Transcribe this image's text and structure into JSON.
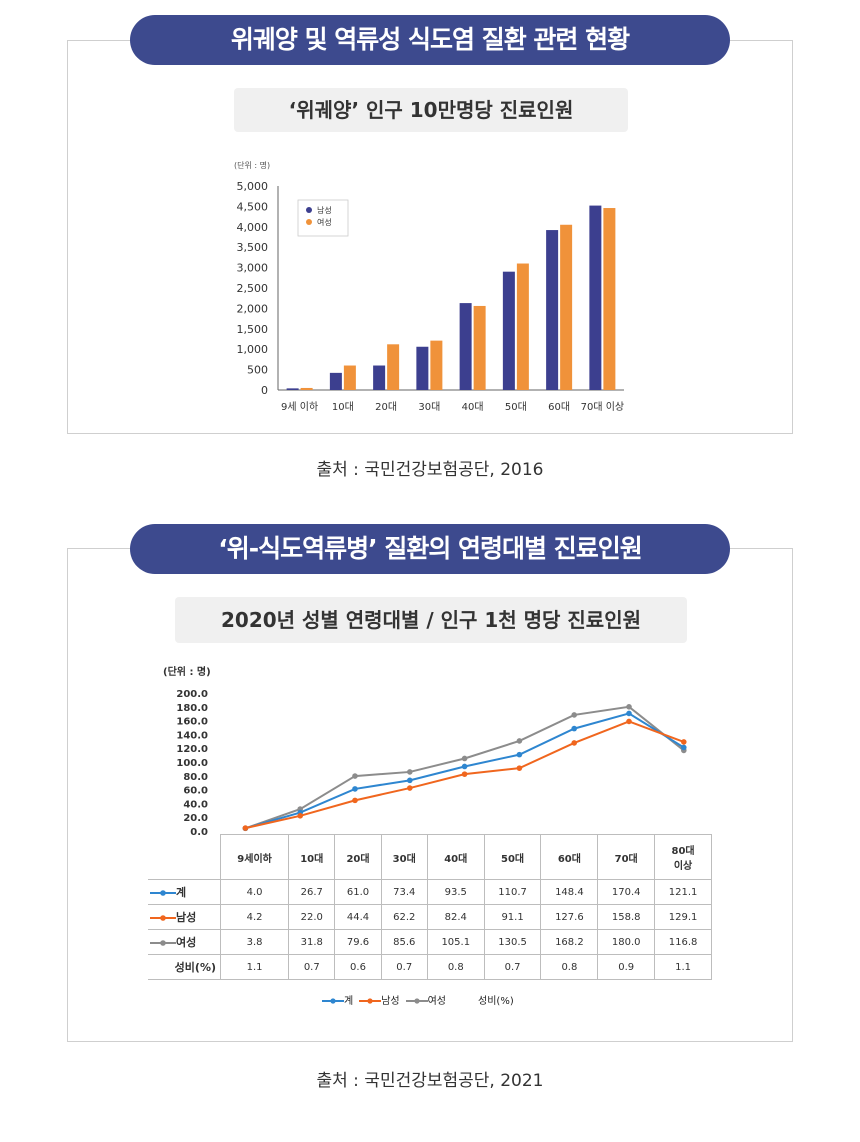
{
  "section1": {
    "title": "위궤양 및 역류성 식도염 질환 관련 현황",
    "subtitle": "‘위궤양’ 인구 10만명당 진료인원",
    "source": "출처 : 국민건강보험공단, 2016"
  },
  "section2": {
    "title": "‘위-식도역류병’ 질환의 연령대별 진료인원",
    "subtitle": "2020년 성별 연령대별 / 인구 1천 명당 진료인원",
    "source": "출처 : 국민건강보험공단, 2021"
  },
  "colors": {
    "navy": "#3d4a8e",
    "male_bar": "#3c3f8f",
    "female_bar": "#f0923a",
    "total_line": "#2e86d0",
    "male_line": "#f0661e",
    "female_line": "#8c8c8c"
  },
  "chart_data": [
    {
      "type": "bar",
      "title": "‘위궤양’ 인구 10만명당 진료인원",
      "unit_label": "(단위 : 명)",
      "categories": [
        "9세 이하",
        "10대",
        "20대",
        "30대",
        "40대",
        "50대",
        "60대",
        "70대 이상"
      ],
      "series": [
        {
          "name": "남성",
          "values": [
            40,
            420,
            600,
            1060,
            2130,
            2900,
            3920,
            4520
          ]
        },
        {
          "name": "여성",
          "values": [
            50,
            600,
            1120,
            1210,
            2060,
            3100,
            4050,
            4460
          ]
        }
      ],
      "yticks": [
        "5,000",
        "4,500",
        "4,000",
        "3,500",
        "3,000",
        "2,500",
        "2,000",
        "1,500",
        "1,000",
        "500",
        "0"
      ],
      "ylim": [
        0,
        5000
      ],
      "legend": "top-left"
    },
    {
      "type": "line",
      "title": "2020년 성별 연령대별 / 인구 1천 명당 진료인원",
      "unit_label": "(단위 : 명)",
      "categories": [
        "9세이하",
        "10대",
        "20대",
        "30대",
        "40대",
        "50대",
        "60대",
        "70대",
        "80대\n이상"
      ],
      "category_lines": [
        [
          "9세이하"
        ],
        [
          "10대"
        ],
        [
          "20대"
        ],
        [
          "30대"
        ],
        [
          "40대"
        ],
        [
          "50대"
        ],
        [
          "60대"
        ],
        [
          "70대"
        ],
        [
          "80대",
          "이상"
        ]
      ],
      "yticks": [
        "200.0",
        "180.0",
        "160.0",
        "140.0",
        "120.0",
        "100.0",
        "80.0",
        "60.0",
        "40.0",
        "20.0",
        "0.0"
      ],
      "ylim": [
        0,
        200
      ],
      "series": [
        {
          "name": "계",
          "values": [
            4.0,
            26.7,
            61.0,
            73.4,
            93.5,
            110.7,
            148.4,
            170.4,
            121.1
          ],
          "labels": [
            "4.0",
            "26.7",
            "61.0",
            "73.4",
            "93.5",
            "110.7",
            "148.4",
            "170.4",
            "121.1"
          ]
        },
        {
          "name": "남성",
          "values": [
            4.2,
            22.0,
            44.4,
            62.2,
            82.4,
            91.1,
            127.6,
            158.8,
            129.1
          ],
          "labels": [
            "4.2",
            "22.0",
            "44.4",
            "62.2",
            "82.4",
            "91.1",
            "127.6",
            "158.8",
            "129.1"
          ]
        },
        {
          "name": "여성",
          "values": [
            3.8,
            31.8,
            79.6,
            85.6,
            105.1,
            130.5,
            168.2,
            180.0,
            116.8
          ],
          "labels": [
            "3.8",
            "31.8",
            "79.6",
            "85.6",
            "105.1",
            "130.5",
            "168.2",
            "180.0",
            "116.8"
          ]
        }
      ],
      "ratio_row": {
        "name": "성비(%)",
        "values": [
          "1.1",
          "0.7",
          "0.6",
          "0.7",
          "0.8",
          "0.7",
          "0.8",
          "0.9",
          "1.1"
        ]
      },
      "legend": [
        "계",
        "남성",
        "여성",
        "성비(%)"
      ]
    }
  ]
}
